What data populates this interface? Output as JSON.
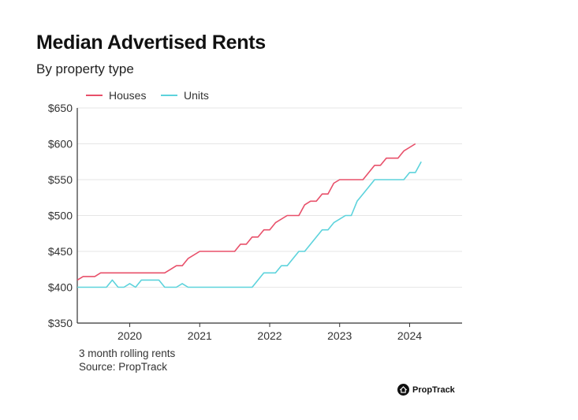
{
  "chart_data": {
    "type": "line",
    "title": "Median Advertised Rents",
    "subtitle": "By property type",
    "xlabel": "",
    "ylabel": "",
    "ylim": [
      350,
      650
    ],
    "yticks": [
      350,
      400,
      450,
      500,
      550,
      600,
      650
    ],
    "ytick_labels": [
      "$350",
      "$400",
      "$450",
      "$500",
      "$550",
      "$600",
      "$650"
    ],
    "xticks": [
      "2020",
      "2021",
      "2022",
      "2023",
      "2024"
    ],
    "grid": "horizontal",
    "legend_position": "top-left",
    "footnotes": [
      "3 month rolling rents",
      "Source: PropTrack"
    ],
    "series": [
      {
        "name": "Houses",
        "color": "#e8506a",
        "points": [
          [
            "2019-04",
            410
          ],
          [
            "2019-05",
            415
          ],
          [
            "2019-07",
            415
          ],
          [
            "2019-08",
            420
          ],
          [
            "2020-01",
            420
          ],
          [
            "2020-06",
            420
          ],
          [
            "2020-07",
            420
          ],
          [
            "2020-08",
            425
          ],
          [
            "2020-09",
            430
          ],
          [
            "2020-10",
            430
          ],
          [
            "2020-11",
            440
          ],
          [
            "2021-01",
            450
          ],
          [
            "2021-07",
            450
          ],
          [
            "2021-08",
            460
          ],
          [
            "2021-09",
            460
          ],
          [
            "2021-10",
            470
          ],
          [
            "2021-11",
            470
          ],
          [
            "2021-12",
            480
          ],
          [
            "2022-01",
            480
          ],
          [
            "2022-02",
            490
          ],
          [
            "2022-04",
            500
          ],
          [
            "2022-06",
            500
          ],
          [
            "2022-07",
            515
          ],
          [
            "2022-08",
            520
          ],
          [
            "2022-09",
            520
          ],
          [
            "2022-10",
            530
          ],
          [
            "2022-11",
            530
          ],
          [
            "2022-12",
            545
          ],
          [
            "2023-01",
            550
          ],
          [
            "2023-05",
            550
          ],
          [
            "2023-06",
            560
          ],
          [
            "2023-07",
            570
          ],
          [
            "2023-08",
            570
          ],
          [
            "2023-09",
            580
          ],
          [
            "2023-11",
            580
          ],
          [
            "2023-12",
            590
          ],
          [
            "2024-02",
            600
          ]
        ]
      },
      {
        "name": "Units",
        "color": "#5dd3dc",
        "points": [
          [
            "2019-04",
            400
          ],
          [
            "2019-09",
            400
          ],
          [
            "2019-10",
            410
          ],
          [
            "2019-11",
            400
          ],
          [
            "2019-12",
            400
          ],
          [
            "2020-01",
            405
          ],
          [
            "2020-02",
            400
          ],
          [
            "2020-03",
            410
          ],
          [
            "2020-05",
            410
          ],
          [
            "2020-06",
            410
          ],
          [
            "2020-07",
            400
          ],
          [
            "2020-09",
            400
          ],
          [
            "2020-10",
            405
          ],
          [
            "2020-11",
            400
          ],
          [
            "2021-10",
            400
          ],
          [
            "2021-11",
            410
          ],
          [
            "2021-12",
            420
          ],
          [
            "2022-02",
            420
          ],
          [
            "2022-03",
            430
          ],
          [
            "2022-04",
            430
          ],
          [
            "2022-05",
            440
          ],
          [
            "2022-06",
            450
          ],
          [
            "2022-07",
            450
          ],
          [
            "2022-08",
            460
          ],
          [
            "2022-09",
            470
          ],
          [
            "2022-10",
            480
          ],
          [
            "2022-11",
            480
          ],
          [
            "2022-12",
            490
          ],
          [
            "2023-01",
            495
          ],
          [
            "2023-02",
            500
          ],
          [
            "2023-03",
            500
          ],
          [
            "2023-04",
            520
          ],
          [
            "2023-05",
            530
          ],
          [
            "2023-06",
            540
          ],
          [
            "2023-07",
            550
          ],
          [
            "2023-12",
            550
          ],
          [
            "2024-01",
            560
          ],
          [
            "2024-02",
            560
          ],
          [
            "2024-03",
            575
          ]
        ]
      }
    ]
  },
  "brand": {
    "name": "PropTrack"
  }
}
